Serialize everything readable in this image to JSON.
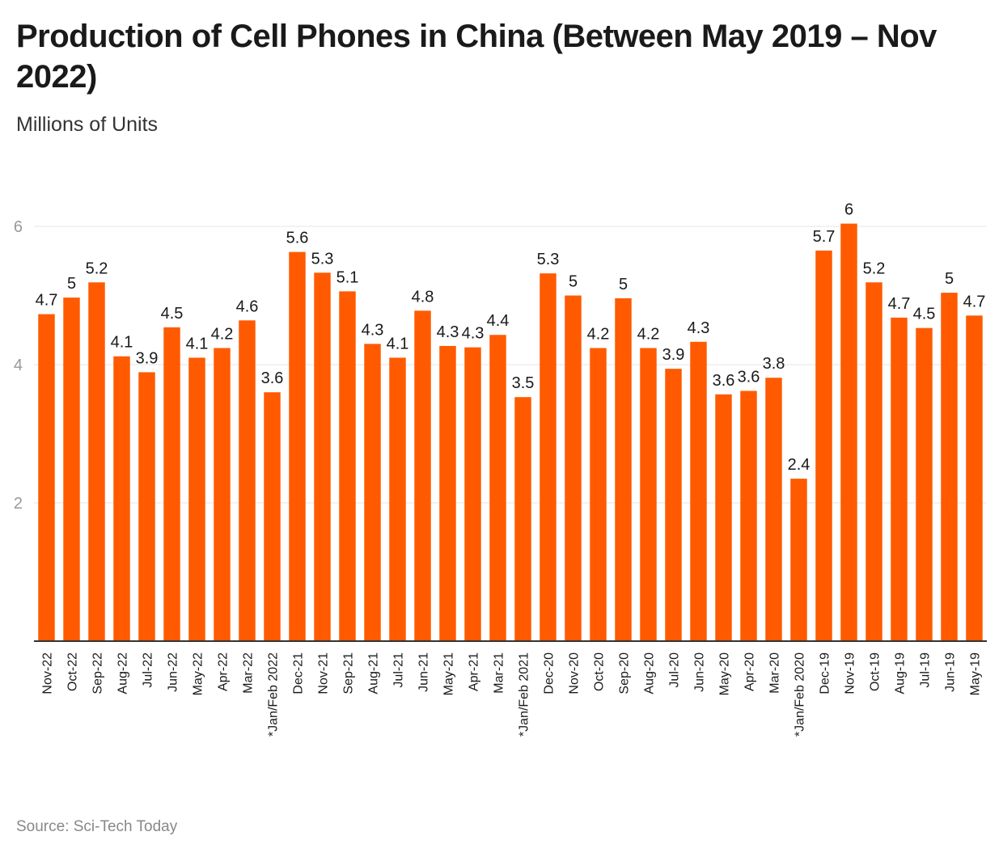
{
  "title": "Production of Cell Phones in China (Between May 2019 – Nov 2022)",
  "subtitle": "Millions of Units",
  "source": "Source: Sci-Tech Today",
  "colors": {
    "bar": "#ff5a00",
    "grid": "#e6e6e6",
    "axis": "#333333"
  },
  "chart_data": {
    "type": "bar",
    "title": "Production of Cell Phones in China (Between May 2019 – Nov 2022)",
    "ylabel": "Millions of Units",
    "xlabel": "",
    "ylim": [
      0,
      6
    ],
    "yticks": [
      2,
      4,
      6
    ],
    "grid": true,
    "categories": [
      "Nov-22",
      "Oct-22",
      "Sep-22",
      "Aug-22",
      "Jul-22",
      "Jun-22",
      "May-22",
      "Apr-22",
      "Mar-22",
      "*Jan/Feb 2022",
      "Dec-21",
      "Nov-21",
      "Sep-21",
      "Aug-21",
      "Jul-21",
      "Jun-21",
      "May-21",
      "Apr-21",
      "Mar-21",
      "*Jan/Feb 2021",
      "Dec-20",
      "Nov-20",
      "Oct-20",
      "Sep-20",
      "Aug-20",
      "Jul-20",
      "Jun-20",
      "May-20",
      "Apr-20",
      "Mar-20",
      "*Jan/Feb 2020",
      "Dec-19",
      "Nov-19",
      "Oct-19",
      "Aug-19",
      "Jul-19",
      "Jun-19",
      "May-19"
    ],
    "values": [
      4.73,
      4.97,
      5.19,
      4.12,
      3.89,
      4.54,
      4.1,
      4.24,
      4.64,
      3.6,
      5.63,
      5.33,
      5.06,
      4.3,
      4.1,
      4.78,
      4.27,
      4.25,
      4.43,
      3.53,
      5.32,
      5.0,
      4.24,
      4.96,
      4.24,
      3.94,
      4.33,
      3.57,
      3.62,
      3.81,
      2.35,
      5.65,
      6.04,
      5.19,
      4.68,
      4.53,
      5.04,
      4.71
    ],
    "labels": [
      "4.7",
      "5",
      "5.2",
      "4.1",
      "3.9",
      "4.5",
      "4.1",
      "4.2",
      "4.6",
      "3.6",
      "5.6",
      "5.3",
      "5.1",
      "4.3",
      "4.1",
      "4.8",
      "4.3",
      "4.3",
      "4.4",
      "3.5",
      "5.3",
      "5",
      "4.2",
      "5",
      "4.2",
      "3.9",
      "4.3",
      "3.6",
      "3.6",
      "3.8",
      "2.4",
      "5.7",
      "6",
      "5.2",
      "4.7",
      "4.5",
      "5",
      "4.7"
    ]
  }
}
